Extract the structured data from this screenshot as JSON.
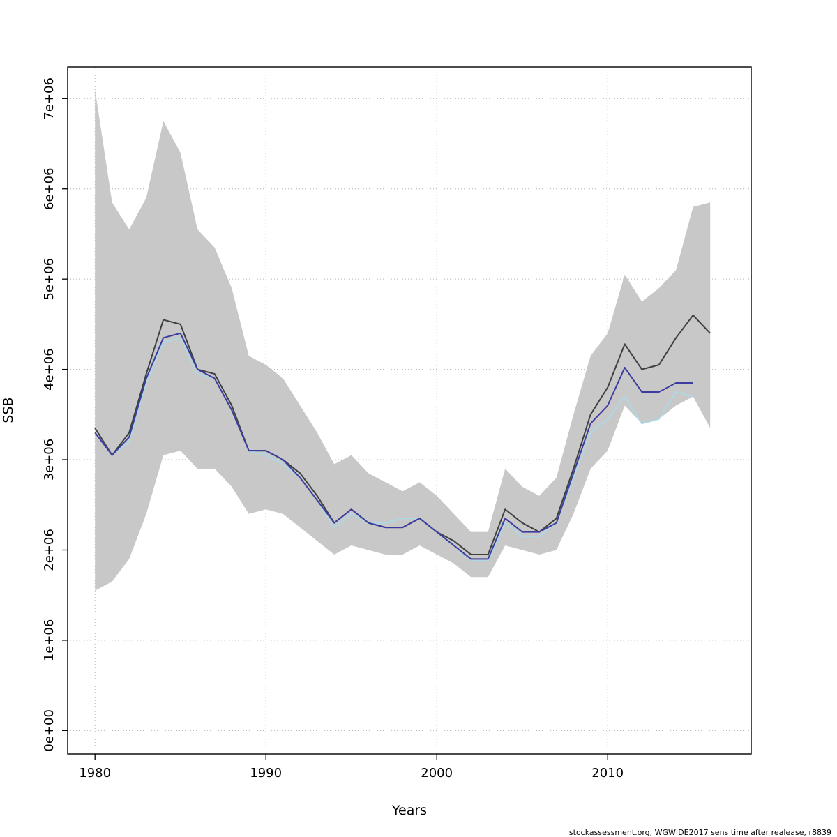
{
  "footer": {
    "credit": "stockassessment.org, WGWIDE2017 sens time after realease, r8839"
  },
  "chart_data": {
    "type": "line",
    "xlabel": "Years",
    "ylabel": "SSB",
    "xlim": [
      1978.4,
      2018.4
    ],
    "ylim": [
      -260000,
      7350000
    ],
    "grid": true,
    "legend": "none",
    "band_color": "#c8c8c8",
    "grid_color": "#b3b3b3",
    "x_ticks": [
      1980,
      1990,
      2000,
      2010
    ],
    "x_tick_labels": [
      "1980",
      "1990",
      "2000",
      "2010"
    ],
    "y_ticks": [
      0,
      1000000,
      2000000,
      3000000,
      4000000,
      5000000,
      6000000,
      7000000
    ],
    "y_tick_labels": [
      "0e+00",
      "1e+06",
      "2e+06",
      "3e+06",
      "4e+06",
      "5e+06",
      "6e+06",
      "7e+06"
    ],
    "years": [
      1980,
      1981,
      1982,
      1983,
      1984,
      1985,
      1986,
      1987,
      1988,
      1989,
      1990,
      1991,
      1992,
      1993,
      1994,
      1995,
      1996,
      1997,
      1998,
      1999,
      2000,
      2001,
      2002,
      2003,
      2004,
      2005,
      2006,
      2007,
      2008,
      2009,
      2010,
      2011,
      2012,
      2013,
      2014,
      2015,
      2016
    ],
    "band": {
      "name": "confidence-band",
      "color": "#c8c8c8",
      "upper": [
        7100000,
        5850000,
        5550000,
        5900000,
        6750000,
        6400000,
        5550000,
        5350000,
        4900000,
        4150000,
        4050000,
        3900000,
        3600000,
        3300000,
        2950000,
        3050000,
        2850000,
        2750000,
        2650000,
        2750000,
        2600000,
        2400000,
        2200000,
        2200000,
        2900000,
        2700000,
        2600000,
        2800000,
        3500000,
        4150000,
        4400000,
        5050000,
        4750000,
        4900000,
        5100000,
        5800000,
        5850000
      ],
      "lower": [
        1550000,
        1650000,
        1900000,
        2400000,
        3050000,
        3100000,
        2900000,
        2900000,
        2700000,
        2400000,
        2450000,
        2400000,
        2250000,
        2100000,
        1950000,
        2050000,
        2000000,
        1950000,
        1950000,
        2050000,
        1950000,
        1850000,
        1700000,
        1700000,
        2050000,
        2000000,
        1950000,
        2000000,
        2400000,
        2900000,
        3100000,
        3600000,
        3400000,
        3450000,
        3600000,
        3700000,
        3350000
      ]
    },
    "series": [
      {
        "name": "dark-gray-run",
        "color": "#3f3f3f",
        "width": 2,
        "values": [
          3350000,
          3050000,
          3300000,
          3950000,
          4550000,
          4500000,
          4000000,
          3950000,
          3600000,
          3100000,
          3100000,
          3000000,
          2850000,
          2600000,
          2300000,
          2450000,
          2300000,
          2250000,
          2250000,
          2350000,
          2200000,
          2100000,
          1950000,
          1950000,
          2450000,
          2300000,
          2200000,
          2350000,
          2900000,
          3500000,
          3800000,
          4280000,
          4000000,
          4050000,
          4350000,
          4600000,
          4400000
        ]
      },
      {
        "name": "light-blue-run",
        "color": "#add8e6",
        "width": 2,
        "values": [
          3300000,
          3050000,
          3200000,
          3850000,
          4300000,
          4350000,
          3950000,
          3900000,
          3550000,
          3100000,
          3050000,
          2950000,
          2800000,
          2550000,
          2250000,
          2400000,
          2300000,
          2300000,
          2350000,
          2350000,
          2200000,
          2050000,
          1880000,
          1880000,
          2300000,
          2150000,
          2150000,
          2300000,
          2800000,
          3300000,
          3450000,
          3700000,
          3400000,
          3450000,
          3750000,
          3700000
        ]
      },
      {
        "name": "dark-blue-run",
        "color": "#3c3c9f",
        "width": 2,
        "values": [
          3300000,
          3050000,
          3250000,
          3900000,
          4350000,
          4400000,
          4000000,
          3900000,
          3550000,
          3100000,
          3100000,
          3000000,
          2800000,
          2550000,
          2300000,
          2450000,
          2300000,
          2250000,
          2250000,
          2350000,
          2200000,
          2050000,
          1900000,
          1900000,
          2350000,
          2200000,
          2200000,
          2300000,
          2850000,
          3400000,
          3600000,
          4020000,
          3750000,
          3750000,
          3850000,
          3850000
        ]
      }
    ]
  }
}
